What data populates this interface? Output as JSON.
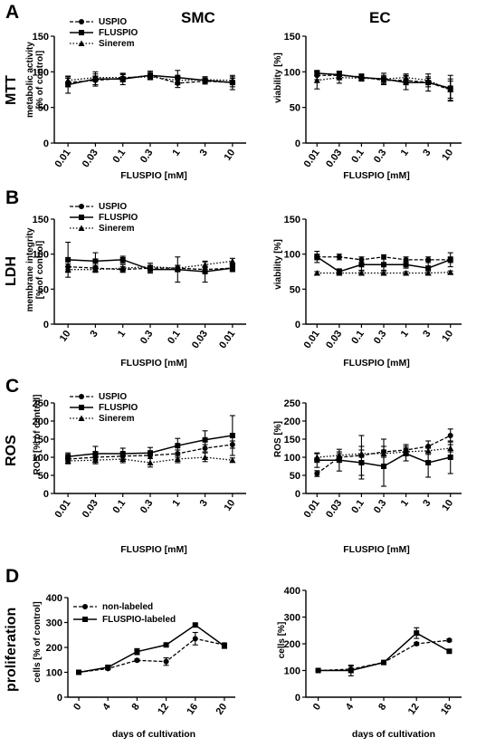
{
  "figure": {
    "panel_letters": [
      "A",
      "B",
      "C",
      "D"
    ],
    "row_titles": [
      "MTT",
      "LDH",
      "ROS",
      "proliferation"
    ],
    "col_titles": [
      "SMC",
      "EC"
    ]
  },
  "legend": {
    "fe_agents": [
      "USPIO",
      "FLUSPIO",
      "Sinerem"
    ],
    "prolif": [
      "non-labeled",
      "FLUSPIO-labeled"
    ]
  },
  "chart_data": [
    {
      "id": "A_SMC",
      "type": "line",
      "title": "",
      "xlabel": "FLUSPIO [mM]",
      "ylabel": "metabolic activity\n[% of control]",
      "categories": [
        "0.01",
        "0.03",
        "0.1",
        "0.3",
        "1",
        "3",
        "10"
      ],
      "ylim": [
        0,
        150
      ],
      "yticks": [
        0,
        50,
        100,
        150
      ],
      "series": [
        {
          "name": "USPIO",
          "values": [
            85,
            88,
            91,
            95,
            84,
            87,
            85
          ],
          "err": [
            6,
            6,
            5,
            4,
            6,
            4,
            6
          ]
        },
        {
          "name": "FLUSPIO",
          "values": [
            82,
            90,
            90,
            95,
            92,
            88,
            85
          ],
          "err": [
            12,
            10,
            8,
            6,
            10,
            5,
            10
          ]
        },
        {
          "name": "Sinerem",
          "values": [
            88,
            92,
            92,
            93,
            88,
            89,
            88
          ],
          "err": [
            5,
            5,
            5,
            4,
            5,
            4,
            5
          ]
        }
      ]
    },
    {
      "id": "A_EC",
      "type": "line",
      "title": "",
      "xlabel": "FLUSPIO [mM]",
      "ylabel": "viability [%]",
      "categories": [
        "0.01",
        "0.03",
        "0.1",
        "0.3",
        "1",
        "3",
        "10"
      ],
      "ylim": [
        0,
        150
      ],
      "yticks": [
        0,
        50,
        100,
        150
      ],
      "series": [
        {
          "name": "USPIO",
          "values": [
            95,
            95,
            93,
            88,
            88,
            85,
            75
          ],
          "err": [
            6,
            5,
            4,
            5,
            6,
            6,
            15
          ]
        },
        {
          "name": "FLUSPIO",
          "values": [
            98,
            96,
            92,
            90,
            85,
            85,
            77
          ],
          "err": [
            4,
            5,
            4,
            8,
            10,
            12,
            18
          ]
        },
        {
          "name": "Sinerem",
          "values": [
            88,
            92,
            91,
            90,
            92,
            88,
            75
          ],
          "err": [
            12,
            8,
            4,
            5,
            5,
            5,
            12
          ]
        }
      ]
    },
    {
      "id": "B_SMC",
      "type": "line",
      "title": "",
      "xlabel": "FLUSPIO [mM]",
      "ylabel": "membrane integrity\n[% of control]",
      "categories": [
        "10",
        "3",
        "1",
        "0.3",
        "0.1",
        "0.03",
        "0.01"
      ],
      "ylim": [
        0,
        150
      ],
      "yticks": [
        0,
        50,
        100,
        150
      ],
      "series": [
        {
          "name": "USPIO",
          "values": [
            82,
            80,
            78,
            80,
            80,
            78,
            80
          ],
          "err": [
            4,
            4,
            4,
            4,
            4,
            4,
            4
          ]
        },
        {
          "name": "FLUSPIO",
          "values": [
            92,
            90,
            92,
            78,
            78,
            75,
            80
          ],
          "err": [
            25,
            12,
            5,
            5,
            18,
            15,
            5
          ]
        },
        {
          "name": "Sinerem",
          "values": [
            78,
            78,
            80,
            82,
            80,
            85,
            90
          ],
          "err": [
            4,
            4,
            5,
            5,
            4,
            4,
            4
          ]
        }
      ]
    },
    {
      "id": "B_EC",
      "type": "line",
      "title": "",
      "xlabel": "FLUSPIO [mM]",
      "ylabel": "viability [%]",
      "categories": [
        "0.01",
        "0.03",
        "0.1",
        "0.3",
        "1",
        "3",
        "10"
      ],
      "ylim": [
        0,
        150
      ],
      "yticks": [
        0,
        50,
        100,
        150
      ],
      "series": [
        {
          "name": "USPIO",
          "values": [
            96,
            96,
            92,
            96,
            92,
            92,
            92
          ],
          "err": [
            4,
            4,
            4,
            3,
            4,
            4,
            4
          ]
        },
        {
          "name": "FLUSPIO",
          "values": [
            96,
            75,
            85,
            85,
            85,
            80,
            92
          ],
          "err": [
            8,
            4,
            8,
            8,
            5,
            10,
            10
          ]
        },
        {
          "name": "Sinerem",
          "values": [
            73,
            73,
            73,
            73,
            73,
            73,
            74
          ],
          "err": [
            2,
            2,
            2,
            2,
            2,
            2,
            2
          ]
        }
      ]
    },
    {
      "id": "C_SMC",
      "type": "line",
      "title": "",
      "xlabel": "FLUSPIO [mM]",
      "ylabel": "ROS [% of control]",
      "categories": [
        "0.01",
        "0.03",
        "0.1",
        "0.3",
        "1",
        "3",
        "10"
      ],
      "ylim": [
        0,
        250
      ],
      "yticks": [
        0,
        50,
        100,
        150,
        200,
        250
      ],
      "series": [
        {
          "name": "USPIO",
          "values": [
            95,
            100,
            103,
            105,
            110,
            125,
            135
          ],
          "err": [
            6,
            6,
            8,
            8,
            10,
            10,
            10
          ]
        },
        {
          "name": "FLUSPIO",
          "values": [
            102,
            110,
            110,
            112,
            132,
            148,
            160
          ],
          "err": [
            10,
            20,
            15,
            15,
            20,
            25,
            55
          ]
        },
        {
          "name": "Sinerem",
          "values": [
            90,
            92,
            95,
            85,
            95,
            100,
            92
          ],
          "err": [
            8,
            10,
            10,
            12,
            10,
            12,
            6
          ]
        }
      ]
    },
    {
      "id": "C_EC",
      "type": "line",
      "title": "",
      "xlabel": "FLUSPIO [mM]",
      "ylabel": "ROS [%]",
      "categories": [
        "0.01",
        "0.03",
        "0.1",
        "0.3",
        "1",
        "3",
        "10"
      ],
      "ylim": [
        0,
        250
      ],
      "yticks": [
        0,
        50,
        100,
        150,
        200,
        250
      ],
      "series": [
        {
          "name": "USPIO",
          "values": [
            55,
            100,
            105,
            115,
            120,
            130,
            160
          ],
          "err": [
            8,
            10,
            55,
            35,
            15,
            15,
            18
          ]
        },
        {
          "name": "FLUSPIO",
          "values": [
            92,
            92,
            85,
            75,
            110,
            85,
            100
          ],
          "err": [
            20,
            30,
            45,
            55,
            20,
            40,
            45
          ]
        },
        {
          "name": "Sinerem",
          "values": [
            100,
            105,
            110,
            110,
            115,
            118,
            125
          ],
          "err": [
            10,
            10,
            10,
            10,
            10,
            10,
            10
          ]
        }
      ]
    },
    {
      "id": "D_SMC",
      "type": "line",
      "title": "",
      "xlabel": "days of cultivation",
      "ylabel": "cells [% of control]",
      "x": [
        0,
        4,
        8,
        12,
        16,
        20
      ],
      "xlim": [
        -1.5,
        21.5
      ],
      "ylim": [
        0,
        400
      ],
      "yticks": [
        0,
        100,
        200,
        300,
        400
      ],
      "series": [
        {
          "name": "non-labeled",
          "values": [
            100,
            115,
            148,
            143,
            235,
            210
          ],
          "err": [
            3,
            5,
            5,
            15,
            25,
            8
          ]
        },
        {
          "name": "FLUSPIO-labeled",
          "values": [
            100,
            120,
            183,
            210,
            290,
            205
          ],
          "err": [
            3,
            5,
            12,
            5,
            5,
            8
          ]
        }
      ]
    },
    {
      "id": "D_EC",
      "type": "line",
      "title": "",
      "xlabel": "days of cultivation",
      "ylabel": "cells [%]",
      "x": [
        0,
        4,
        8,
        12,
        16
      ],
      "xlim": [
        -1.5,
        17.5
      ],
      "ylim": [
        0,
        400
      ],
      "yticks": [
        0,
        100,
        200,
        300,
        400
      ],
      "series": [
        {
          "name": "non-labeled",
          "values": [
            100,
            105,
            130,
            200,
            213
          ],
          "err": [
            3,
            12,
            5,
            5,
            5
          ]
        },
        {
          "name": "FLUSPIO-labeled",
          "values": [
            100,
            100,
            130,
            240,
            172
          ],
          "err": [
            3,
            20,
            5,
            20,
            5
          ]
        }
      ]
    }
  ]
}
